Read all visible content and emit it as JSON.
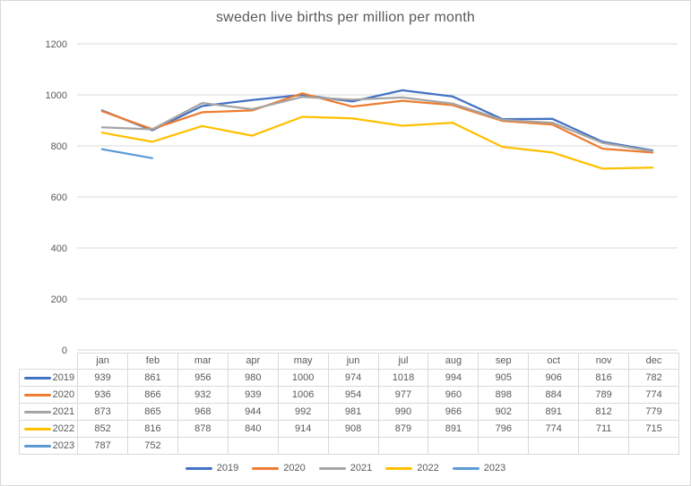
{
  "chart_data": {
    "type": "line",
    "title": "sweden live births per million per month",
    "categories": [
      "jan",
      "feb",
      "mar",
      "apr",
      "may",
      "jun",
      "jul",
      "aug",
      "sep",
      "oct",
      "nov",
      "dec"
    ],
    "series": [
      {
        "name": "2019",
        "color": "#4472C4",
        "values": [
          939,
          861,
          956,
          980,
          1000,
          974,
          1018,
          994,
          905,
          906,
          816,
          782
        ]
      },
      {
        "name": "2020",
        "color": "#ED7D31",
        "values": [
          936,
          866,
          932,
          939,
          1006,
          954,
          977,
          960,
          898,
          884,
          789,
          774
        ]
      },
      {
        "name": "2021",
        "color": "#A5A5A5",
        "values": [
          873,
          865,
          968,
          944,
          992,
          981,
          990,
          966,
          902,
          891,
          812,
          779
        ]
      },
      {
        "name": "2022",
        "color": "#FFC000",
        "values": [
          852,
          816,
          878,
          840,
          914,
          908,
          879,
          891,
          796,
          774,
          711,
          715
        ]
      },
      {
        "name": "2023",
        "color": "#5B9BD5",
        "values": [
          787,
          752,
          null,
          null,
          null,
          null,
          null,
          null,
          null,
          null,
          null,
          null
        ]
      }
    ],
    "ylim": [
      0,
      1200
    ],
    "yticks": [
      0,
      200,
      400,
      600,
      800,
      1000,
      1200
    ],
    "grid": true,
    "legend_position": "bottom",
    "data_table": true,
    "legend_entries": [
      "2019",
      "2020",
      "2021",
      "2022",
      "2023"
    ]
  },
  "palette": {
    "gridline": "#d9d9d9",
    "table_border": "#d9d9d9",
    "text": "#595959",
    "background": "#ffffff",
    "frame_border": "#d9d9d9"
  }
}
